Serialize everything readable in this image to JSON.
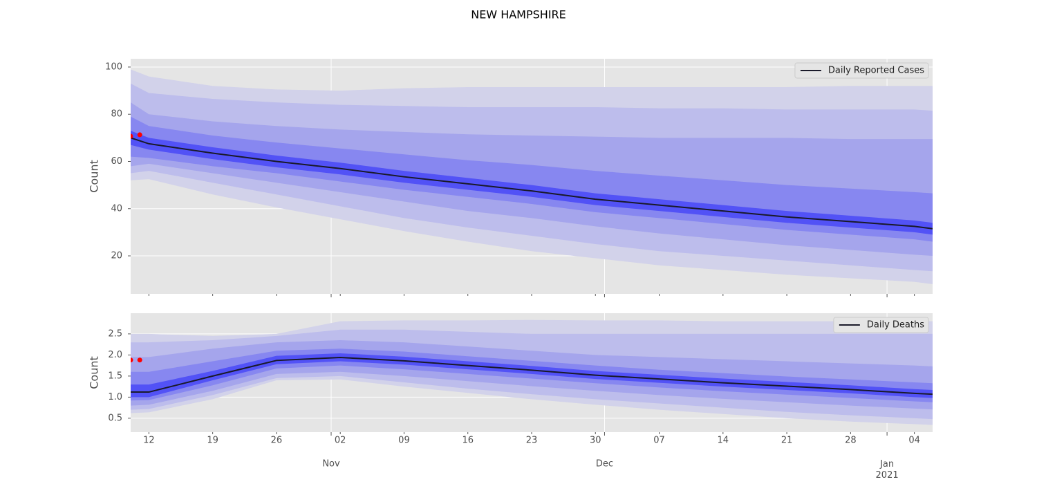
{
  "title": "NEW HAMPSHIRE",
  "chart_data": [
    {
      "type": "line",
      "ylabel": "Count",
      "x": [
        "2020-10-10",
        "2020-10-12",
        "2020-10-19",
        "2020-10-26",
        "2020-11-02",
        "2020-11-09",
        "2020-11-16",
        "2020-11-23",
        "2020-11-30",
        "2020-12-07",
        "2020-12-14",
        "2020-12-21",
        "2020-12-28",
        "2021-01-04",
        "2021-01-06"
      ],
      "xlim": [
        "2020-10-10",
        "2021-01-06"
      ],
      "ylim": [
        3.9,
        103.5
      ],
      "yticks": [
        20,
        40,
        60,
        80,
        100
      ],
      "grid": true,
      "legend": "upper right",
      "series": [
        {
          "name": "Daily Reported Cases",
          "color": "#1a1a2a",
          "values": [
            70,
            67.5,
            63.5,
            60,
            57,
            53.5,
            50.5,
            47.5,
            44,
            41.5,
            39,
            36.5,
            34.5,
            32.5,
            31.5
          ]
        }
      ],
      "bands": [
        {
          "color": "#d2d2ea",
          "upper": [
            99,
            96,
            92,
            90.5,
            90,
            91,
            91.5,
            91.5,
            91.5,
            91.5,
            91.5,
            91.5,
            92,
            92,
            92
          ],
          "lower": [
            52,
            52.5,
            46,
            40.5,
            35.5,
            30.5,
            26,
            22,
            19,
            16,
            14,
            12,
            10.5,
            9,
            8
          ]
        },
        {
          "color": "#bdbdec",
          "upper": [
            93,
            89,
            86.5,
            85,
            84,
            83.5,
            83,
            83,
            83,
            82.5,
            82.5,
            82,
            82,
            82,
            81.5
          ],
          "lower": [
            55,
            56,
            51,
            46,
            41,
            36,
            32,
            28.5,
            25,
            22,
            20,
            18,
            16,
            14,
            13.5
          ]
        },
        {
          "color": "#a5a5ec",
          "upper": [
            85,
            80,
            77,
            75,
            73.5,
            72.5,
            71.5,
            71,
            70.5,
            70,
            70,
            70,
            69.5,
            69.5,
            69.5
          ],
          "lower": [
            58,
            59,
            55,
            51,
            47,
            43,
            39,
            36,
            32.5,
            29.5,
            27,
            24.5,
            22.5,
            20.5,
            20
          ]
        },
        {
          "color": "#8787f0",
          "upper": [
            79,
            75,
            71,
            68,
            65.5,
            63,
            60.5,
            58.5,
            56,
            54,
            52,
            50,
            48.5,
            47,
            46.5
          ],
          "lower": [
            62,
            61.5,
            58,
            55,
            51.5,
            48,
            45,
            42,
            38.5,
            36,
            33.5,
            31,
            29,
            27,
            26
          ]
        },
        {
          "color": "#5252f6",
          "upper": [
            73,
            70,
            66,
            62.5,
            59.5,
            56,
            53,
            50,
            46.5,
            44,
            41.5,
            39,
            37,
            35,
            34
          ],
          "lower": [
            67,
            65,
            61,
            57.5,
            54.5,
            51,
            48,
            45,
            41.5,
            39,
            36.5,
            34,
            32,
            30,
            29
          ]
        }
      ],
      "observed": {
        "color": "#ff0000",
        "x": [
          "2020-10-10",
          "2020-10-11"
        ],
        "values": [
          70.7,
          71.3
        ]
      }
    },
    {
      "type": "line",
      "ylabel": "Count",
      "x": [
        "2020-10-10",
        "2020-10-12",
        "2020-10-19",
        "2020-10-26",
        "2020-11-02",
        "2020-11-09",
        "2020-11-16",
        "2020-11-23",
        "2020-11-30",
        "2020-12-07",
        "2020-12-14",
        "2020-12-21",
        "2020-12-28",
        "2021-01-04",
        "2021-01-06"
      ],
      "xlim": [
        "2020-10-10",
        "2021-01-06"
      ],
      "ylim": [
        0.17,
        2.99
      ],
      "yticks": [
        0.5,
        {
          "value": 1,
          "label": "1.0"
        },
        1.5,
        {
          "value": 2,
          "label": "2.0"
        },
        2.5
      ],
      "xticks": [
        {
          "value": "2020-11-01",
          "label": "Nov"
        },
        {
          "value": "2020-12-01",
          "label": "Dec"
        },
        {
          "value": "2021-01-01",
          "label": "Jan\n2021"
        }
      ],
      "xminorticks": [
        {
          "value": "2020-10-12",
          "label": "12"
        },
        {
          "value": "2020-10-19",
          "label": "19"
        },
        {
          "value": "2020-10-26",
          "label": "26"
        },
        {
          "value": "2020-11-02",
          "label": "02"
        },
        {
          "value": "2020-11-09",
          "label": "09"
        },
        {
          "value": "2020-11-16",
          "label": "16"
        },
        {
          "value": "2020-11-23",
          "label": "23"
        },
        {
          "value": "2020-11-30",
          "label": "30"
        },
        {
          "value": "2020-12-07",
          "label": "07"
        },
        {
          "value": "2020-12-14",
          "label": "14"
        },
        {
          "value": "2020-12-21",
          "label": "21"
        },
        {
          "value": "2020-12-28",
          "label": "28"
        },
        {
          "value": "2021-01-04",
          "label": "04"
        }
      ],
      "grid": true,
      "legend": "upper right",
      "series": [
        {
          "name": "Daily Deaths",
          "color": "#1a1a2a",
          "values": [
            1.12,
            1.12,
            1.5,
            1.87,
            1.94,
            1.86,
            1.75,
            1.64,
            1.52,
            1.43,
            1.34,
            1.26,
            1.18,
            1.09,
            1.07
          ]
        }
      ],
      "bands": [
        {
          "color": "#d2d2ea",
          "upper": [
            2.5,
            2.5,
            2.45,
            2.5,
            2.8,
            2.82,
            2.82,
            2.83,
            2.82,
            2.82,
            2.8,
            2.8,
            2.8,
            2.8,
            2.8
          ],
          "lower": [
            0.62,
            0.64,
            0.95,
            1.4,
            1.42,
            1.25,
            1.1,
            0.95,
            0.82,
            0.7,
            0.6,
            0.5,
            0.42,
            0.36,
            0.34
          ]
        },
        {
          "color": "#bdbdec",
          "upper": [
            2.3,
            2.3,
            2.35,
            2.45,
            2.6,
            2.6,
            2.55,
            2.5,
            2.5,
            2.5,
            2.5,
            2.5,
            2.5,
            2.5,
            2.5
          ],
          "lower": [
            0.7,
            0.72,
            1.05,
            1.45,
            1.5,
            1.35,
            1.2,
            1.07,
            0.95,
            0.85,
            0.75,
            0.65,
            0.57,
            0.5,
            0.48
          ]
        },
        {
          "color": "#a5a5ec",
          "upper": [
            1.95,
            1.95,
            2.15,
            2.3,
            2.35,
            2.3,
            2.2,
            2.1,
            2.0,
            1.95,
            1.9,
            1.85,
            1.8,
            1.75,
            1.73
          ],
          "lower": [
            0.8,
            0.82,
            1.15,
            1.55,
            1.6,
            1.5,
            1.38,
            1.26,
            1.15,
            1.05,
            0.96,
            0.88,
            0.8,
            0.73,
            0.71
          ]
        },
        {
          "color": "#8787f0",
          "upper": [
            1.6,
            1.6,
            1.85,
            2.1,
            2.15,
            2.08,
            1.97,
            1.86,
            1.75,
            1.65,
            1.57,
            1.49,
            1.42,
            1.35,
            1.33
          ],
          "lower": [
            0.92,
            0.93,
            1.28,
            1.68,
            1.75,
            1.66,
            1.55,
            1.44,
            1.33,
            1.23,
            1.14,
            1.06,
            0.98,
            0.9,
            0.88
          ]
        },
        {
          "color": "#5252f6",
          "upper": [
            1.3,
            1.3,
            1.62,
            1.98,
            2.04,
            1.96,
            1.85,
            1.74,
            1.62,
            1.53,
            1.44,
            1.36,
            1.28,
            1.19,
            1.17
          ],
          "lower": [
            1.0,
            1.0,
            1.4,
            1.78,
            1.85,
            1.77,
            1.66,
            1.55,
            1.43,
            1.34,
            1.25,
            1.17,
            1.09,
            1.0,
            0.98
          ]
        }
      ],
      "observed": {
        "color": "#ff0000",
        "x": [
          "2020-10-10",
          "2020-10-11"
        ],
        "values": [
          1.88,
          1.88
        ]
      }
    }
  ]
}
